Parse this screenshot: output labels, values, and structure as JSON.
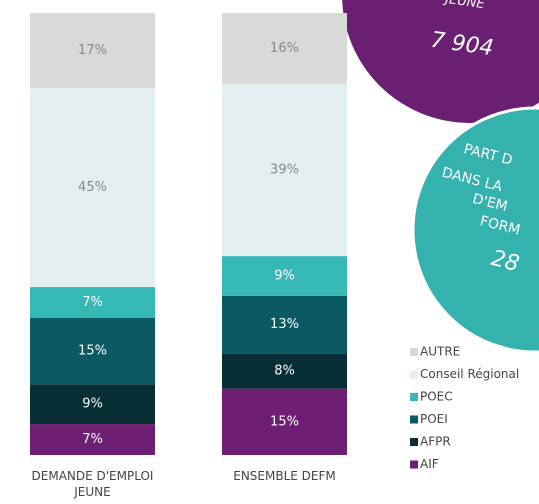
{
  "chart_data": {
    "type": "stacked-bar",
    "categories": [
      "DEMANDE D'EMPLOI JEUNE",
      "ENSEMBLE DEFM"
    ],
    "ylim": [
      0,
      100
    ],
    "series": [
      {
        "name": "AIF",
        "color": "#6e1f73",
        "values": [
          7,
          15
        ],
        "value_labels": [
          "7%",
          "15%"
        ]
      },
      {
        "name": "AFPR",
        "color": "#062e34",
        "values": [
          9,
          8
        ],
        "value_labels": [
          "9%",
          "8%"
        ]
      },
      {
        "name": "POEI",
        "color": "#0b5a63",
        "values": [
          15,
          13
        ],
        "value_labels": [
          "15%",
          "13%"
        ]
      },
      {
        "name": "POEC",
        "color": "#36b9b5",
        "values": [
          7,
          9
        ],
        "value_labels": [
          "7%",
          "9%"
        ]
      },
      {
        "name": "Conseil Régional",
        "color": "#e2eef0",
        "values": [
          45,
          39
        ],
        "value_labels": [
          "45%",
          "39%"
        ]
      },
      {
        "name": "AUTRE",
        "color": "#d9d9d9",
        "values": [
          17,
          16
        ],
        "value_labels": [
          "17%",
          "16%"
        ]
      }
    ],
    "annotations": [
      {
        "lines": [
          "JEUNE",
          "7 904"
        ]
      },
      {
        "lines": [
          "PART D",
          "DANS LA",
          "D'EM",
          "FORM",
          "28"
        ]
      }
    ]
  }
}
